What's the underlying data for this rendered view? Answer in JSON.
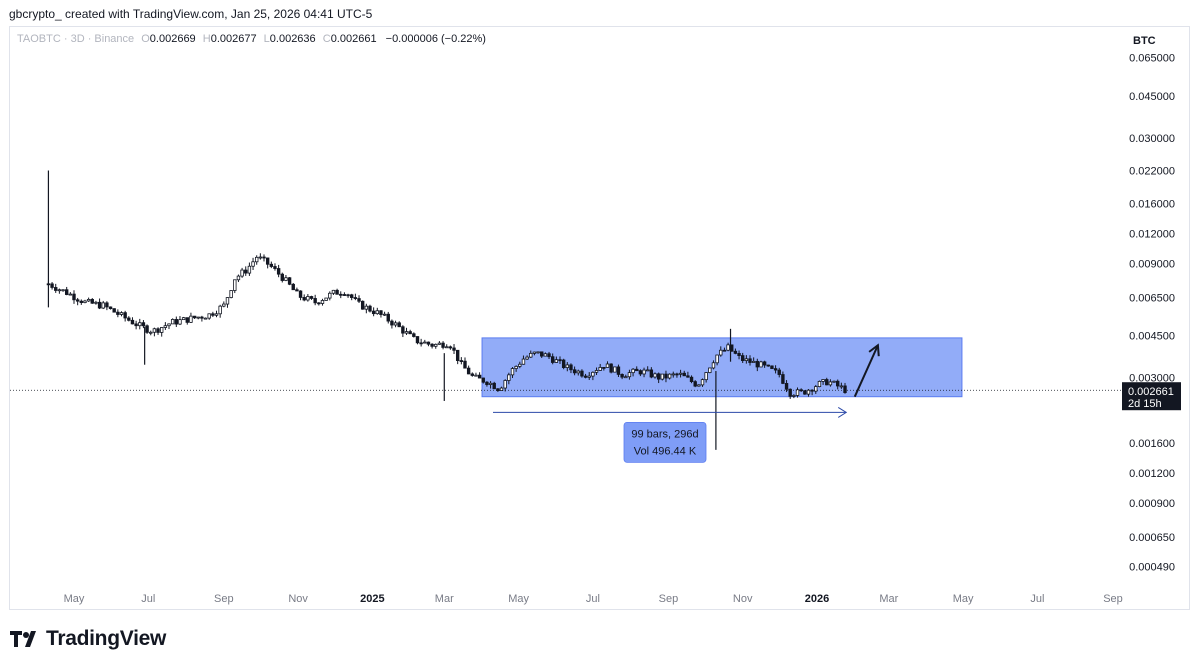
{
  "header": {
    "attribution": "gbcrypto_ created with TradingView.com, Jan 25, 2026 04:41 UTC-5"
  },
  "legend": {
    "symbol": "TAOBTC · 3D · Binance",
    "o_label": "O",
    "o_value": "0.002669",
    "h_label": "H",
    "h_value": "0.002677",
    "l_label": "L",
    "l_value": "0.002636",
    "c_label": "C",
    "c_value": "0.002661",
    "change": "−0.000006 (−0.22%)"
  },
  "currency": "BTC",
  "footer": {
    "brand": "TradingView"
  },
  "colors": {
    "candle": "#131722",
    "range_fill": "#7f9df7",
    "range_stroke": "#5b7cf0",
    "arrow": "#1e3a8a",
    "price_tag_bg": "#131722"
  },
  "chart_data": {
    "type": "candlestick",
    "scale": "log",
    "y_ticks": [
      {
        "value": 0.065,
        "label": "0.065000"
      },
      {
        "value": 0.045,
        "label": "0.045000"
      },
      {
        "value": 0.03,
        "label": "0.030000"
      },
      {
        "value": 0.022,
        "label": "0.022000"
      },
      {
        "value": 0.016,
        "label": "0.016000"
      },
      {
        "value": 0.012,
        "label": "0.012000"
      },
      {
        "value": 0.009,
        "label": "0.009000"
      },
      {
        "value": 0.0065,
        "label": "0.006500"
      },
      {
        "value": 0.0045,
        "label": "0.004500"
      },
      {
        "value": 0.003,
        "label": "0.003000"
      },
      {
        "value": 0.0016,
        "label": "0.001600"
      },
      {
        "value": 0.0012,
        "label": "0.001200"
      },
      {
        "value": 0.0009,
        "label": "0.000900"
      },
      {
        "value": 0.00065,
        "label": "0.000650"
      },
      {
        "value": 0.00049,
        "label": "0.000490"
      }
    ],
    "x_ticks": [
      {
        "date": "2024-05-01",
        "label": "May",
        "bold": false
      },
      {
        "date": "2024-07-01",
        "label": "Jul",
        "bold": false
      },
      {
        "date": "2024-09-01",
        "label": "Sep",
        "bold": false
      },
      {
        "date": "2024-11-01",
        "label": "Nov",
        "bold": false
      },
      {
        "date": "2025-01-01",
        "label": "2025",
        "bold": true
      },
      {
        "date": "2025-03-01",
        "label": "Mar",
        "bold": false
      },
      {
        "date": "2025-05-01",
        "label": "May",
        "bold": false
      },
      {
        "date": "2025-07-01",
        "label": "Jul",
        "bold": false
      },
      {
        "date": "2025-09-01",
        "label": "Sep",
        "bold": false
      },
      {
        "date": "2025-11-01",
        "label": "Nov",
        "bold": false
      },
      {
        "date": "2026-01-01",
        "label": "2026",
        "bold": true
      },
      {
        "date": "2026-03-01",
        "label": "Mar",
        "bold": false
      },
      {
        "date": "2026-05-01",
        "label": "May",
        "bold": false
      },
      {
        "date": "2026-07-01",
        "label": "Jul",
        "bold": false
      },
      {
        "date": "2026-09-01",
        "label": "Sep",
        "bold": false
      }
    ],
    "last_price": {
      "value": 0.002661,
      "label": "0.002661",
      "countdown": "2d 15h"
    },
    "series_close": [
      [
        "2024-04-10",
        0.0074
      ],
      [
        "2024-04-25",
        0.0068
      ],
      [
        "2024-05-10",
        0.0062
      ],
      [
        "2024-05-25",
        0.006
      ],
      [
        "2024-06-10",
        0.0054
      ],
      [
        "2024-06-25",
        0.0049
      ],
      [
        "2024-07-05",
        0.0047
      ],
      [
        "2024-07-20",
        0.0051
      ],
      [
        "2024-08-05",
        0.0053
      ],
      [
        "2024-08-20",
        0.0055
      ],
      [
        "2024-09-01",
        0.006
      ],
      [
        "2024-09-10",
        0.0078
      ],
      [
        "2024-09-20",
        0.0085
      ],
      [
        "2024-09-28",
        0.0096
      ],
      [
        "2024-10-08",
        0.0089
      ],
      [
        "2024-10-20",
        0.0078
      ],
      [
        "2024-11-01",
        0.0066
      ],
      [
        "2024-11-15",
        0.0062
      ],
      [
        "2024-12-01",
        0.0068
      ],
      [
        "2024-12-10",
        0.0069
      ],
      [
        "2024-12-20",
        0.0061
      ],
      [
        "2025-01-05",
        0.0056
      ],
      [
        "2025-01-20",
        0.005
      ],
      [
        "2025-02-05",
        0.0043
      ],
      [
        "2025-02-20",
        0.0041
      ],
      [
        "2025-03-05",
        0.0042
      ],
      [
        "2025-03-15",
        0.0034
      ],
      [
        "2025-03-25",
        0.003
      ],
      [
        "2025-04-05",
        0.0029
      ],
      [
        "2025-04-15",
        0.0027
      ],
      [
        "2025-04-25",
        0.0032
      ],
      [
        "2025-05-05",
        0.0036
      ],
      [
        "2025-05-15",
        0.0038
      ],
      [
        "2025-05-25",
        0.0037
      ],
      [
        "2025-06-10",
        0.0033
      ],
      [
        "2025-06-25",
        0.0031
      ],
      [
        "2025-07-10",
        0.0034
      ],
      [
        "2025-07-25",
        0.0031
      ],
      [
        "2025-08-10",
        0.0032
      ],
      [
        "2025-08-25",
        0.003
      ],
      [
        "2025-09-10",
        0.0031
      ],
      [
        "2025-09-25",
        0.0028
      ],
      [
        "2025-10-10",
        0.0037
      ],
      [
        "2025-10-20",
        0.004
      ],
      [
        "2025-10-30",
        0.0036
      ],
      [
        "2025-11-15",
        0.0034
      ],
      [
        "2025-12-01",
        0.0031
      ],
      [
        "2025-12-10",
        0.0026
      ],
      [
        "2025-12-20",
        0.0026
      ],
      [
        "2026-01-01",
        0.0028
      ],
      [
        "2026-01-10",
        0.0029
      ],
      [
        "2026-01-25",
        0.002661
      ]
    ],
    "annotations": {
      "range_box": {
        "start": "2025-04-01",
        "end": "2026-04-30",
        "top": 0.0044,
        "bottom": 0.0025
      },
      "date_range": {
        "start": "2025-04-10",
        "end": "2026-01-25",
        "price": 0.00215,
        "line1": "99 bars, 296d",
        "line2": "Vol 496.44 K"
      },
      "arrow": {
        "from_date": "2026-02-01",
        "from_price": 0.0025,
        "to_date": "2026-02-20",
        "to_price": 0.0041
      }
    }
  }
}
